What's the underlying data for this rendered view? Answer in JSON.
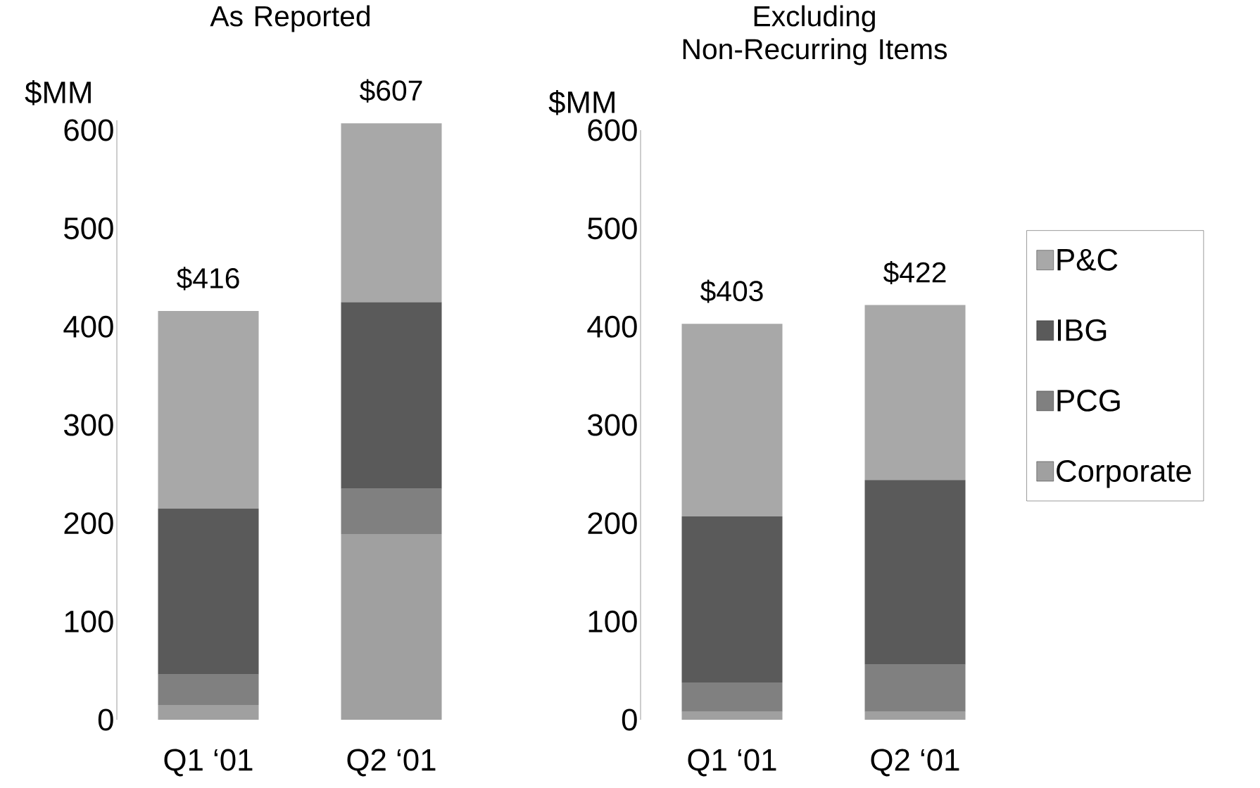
{
  "chart_data": [
    {
      "type": "bar",
      "stacked": true,
      "title": "As Reported",
      "ylabel": "$MM",
      "categories": [
        "Q1 ‘01",
        "Q2 ‘01"
      ],
      "ylim": [
        0,
        610
      ],
      "yticks": [
        0,
        100,
        200,
        300,
        400,
        500,
        600
      ],
      "totals": [
        "$416",
        "$607"
      ],
      "legend": false,
      "series": [
        {
          "color": "#a0a0a0",
          "values": [
            15,
            189
          ]
        },
        {
          "color": "#808080",
          "values": [
            31,
            46
          ]
        },
        {
          "color": "#5a5a5a",
          "values": [
            169,
            190
          ]
        },
        {
          "color": "#a8a8a8",
          "values": [
            201,
            182
          ]
        }
      ]
    },
    {
      "type": "bar",
      "stacked": true,
      "title": "Excluding Non-Recurring Items",
      "ylabel": "$MM",
      "categories": [
        "Q1 ‘01",
        "Q2 ‘01"
      ],
      "ylim": [
        0,
        600
      ],
      "yticks": [
        0,
        100,
        200,
        300,
        400,
        500,
        600
      ],
      "totals": [
        "$403",
        "$422"
      ],
      "legend": "right",
      "series": [
        {
          "name": "Corporate",
          "color": "#a0a0a0",
          "values": [
            8,
            8
          ]
        },
        {
          "name": "PCG",
          "color": "#808080",
          "values": [
            30,
            48
          ]
        },
        {
          "name": "IBG",
          "color": "#5a5a5a",
          "values": [
            169,
            188
          ]
        },
        {
          "name": "P&C",
          "color": "#a8a8a8",
          "values": [
            196,
            178
          ]
        }
      ]
    }
  ]
}
